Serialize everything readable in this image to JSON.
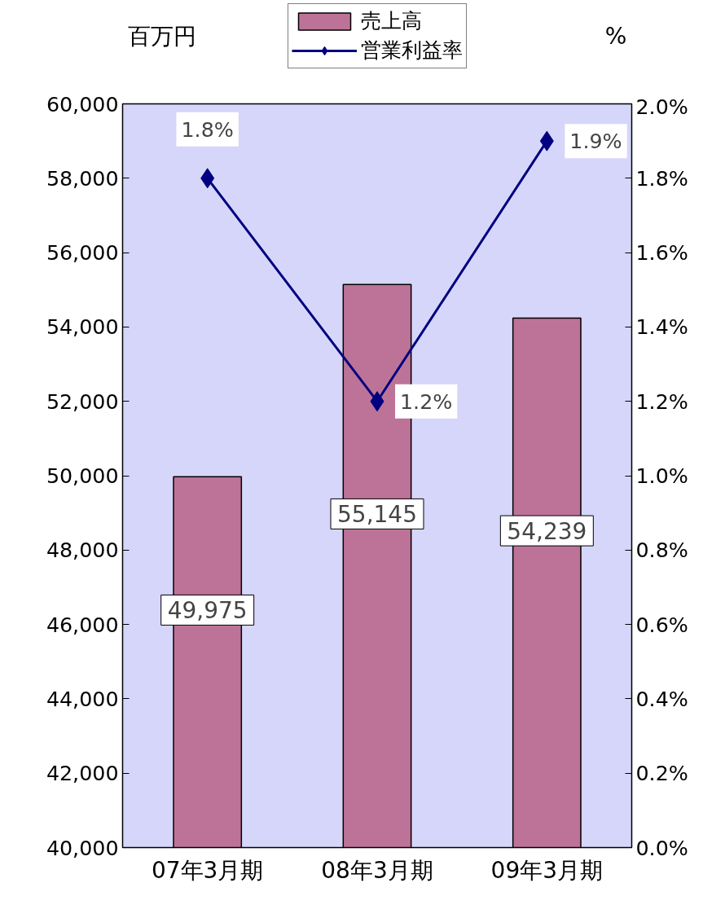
{
  "chart_data": {
    "type": "bar",
    "ylabel": "百万円",
    "y2label": "%",
    "categories": [
      "07年3月期",
      "08年3月期",
      "09年3月期"
    ],
    "series": [
      {
        "name": "売上高",
        "color": "#bd7398",
        "values": [
          49975,
          55145,
          54239
        ],
        "value_labels": [
          "49,975",
          "55,145",
          "54,239"
        ]
      },
      {
        "name": "営業利益率",
        "type": "line",
        "axis": "y2",
        "color": "#000080",
        "marker": "diamond",
        "values": [
          1.8,
          1.2,
          1.9
        ],
        "value_labels": [
          "1.8%",
          "1.2%",
          "1.9%"
        ]
      }
    ],
    "ylim": [
      40000,
      60000
    ],
    "yticks": [
      {
        "value": 40000,
        "label": "40,000"
      },
      {
        "value": 42000,
        "label": "42,000"
      },
      {
        "value": 44000,
        "label": "44,000"
      },
      {
        "value": 46000,
        "label": "46,000"
      },
      {
        "value": 48000,
        "label": "48,000"
      },
      {
        "value": 50000,
        "label": "50,000"
      },
      {
        "value": 52000,
        "label": "52,000"
      },
      {
        "value": 54000,
        "label": "54,000"
      },
      {
        "value": 56000,
        "label": "56,000"
      },
      {
        "value": 58000,
        "label": "58,000"
      },
      {
        "value": 60000,
        "label": "60,000"
      }
    ],
    "y2lim": [
      0,
      2.0
    ],
    "y2ticks": [
      {
        "value": 0,
        "label": "0.0%"
      },
      {
        "value": 0.2,
        "label": "0.2%"
      },
      {
        "value": 0.4,
        "label": "0.4%"
      },
      {
        "value": 0.6,
        "label": "0.6%"
      },
      {
        "value": 0.8,
        "label": "0.8%"
      },
      {
        "value": 1.0,
        "label": "1.0%"
      },
      {
        "value": 1.2,
        "label": "1.2%"
      },
      {
        "value": 1.4,
        "label": "1.4%"
      },
      {
        "value": 1.6,
        "label": "1.6%"
      },
      {
        "value": 1.8,
        "label": "1.8%"
      },
      {
        "value": 2.0,
        "label": "2.0%"
      }
    ],
    "grid": false,
    "legend": "top"
  }
}
